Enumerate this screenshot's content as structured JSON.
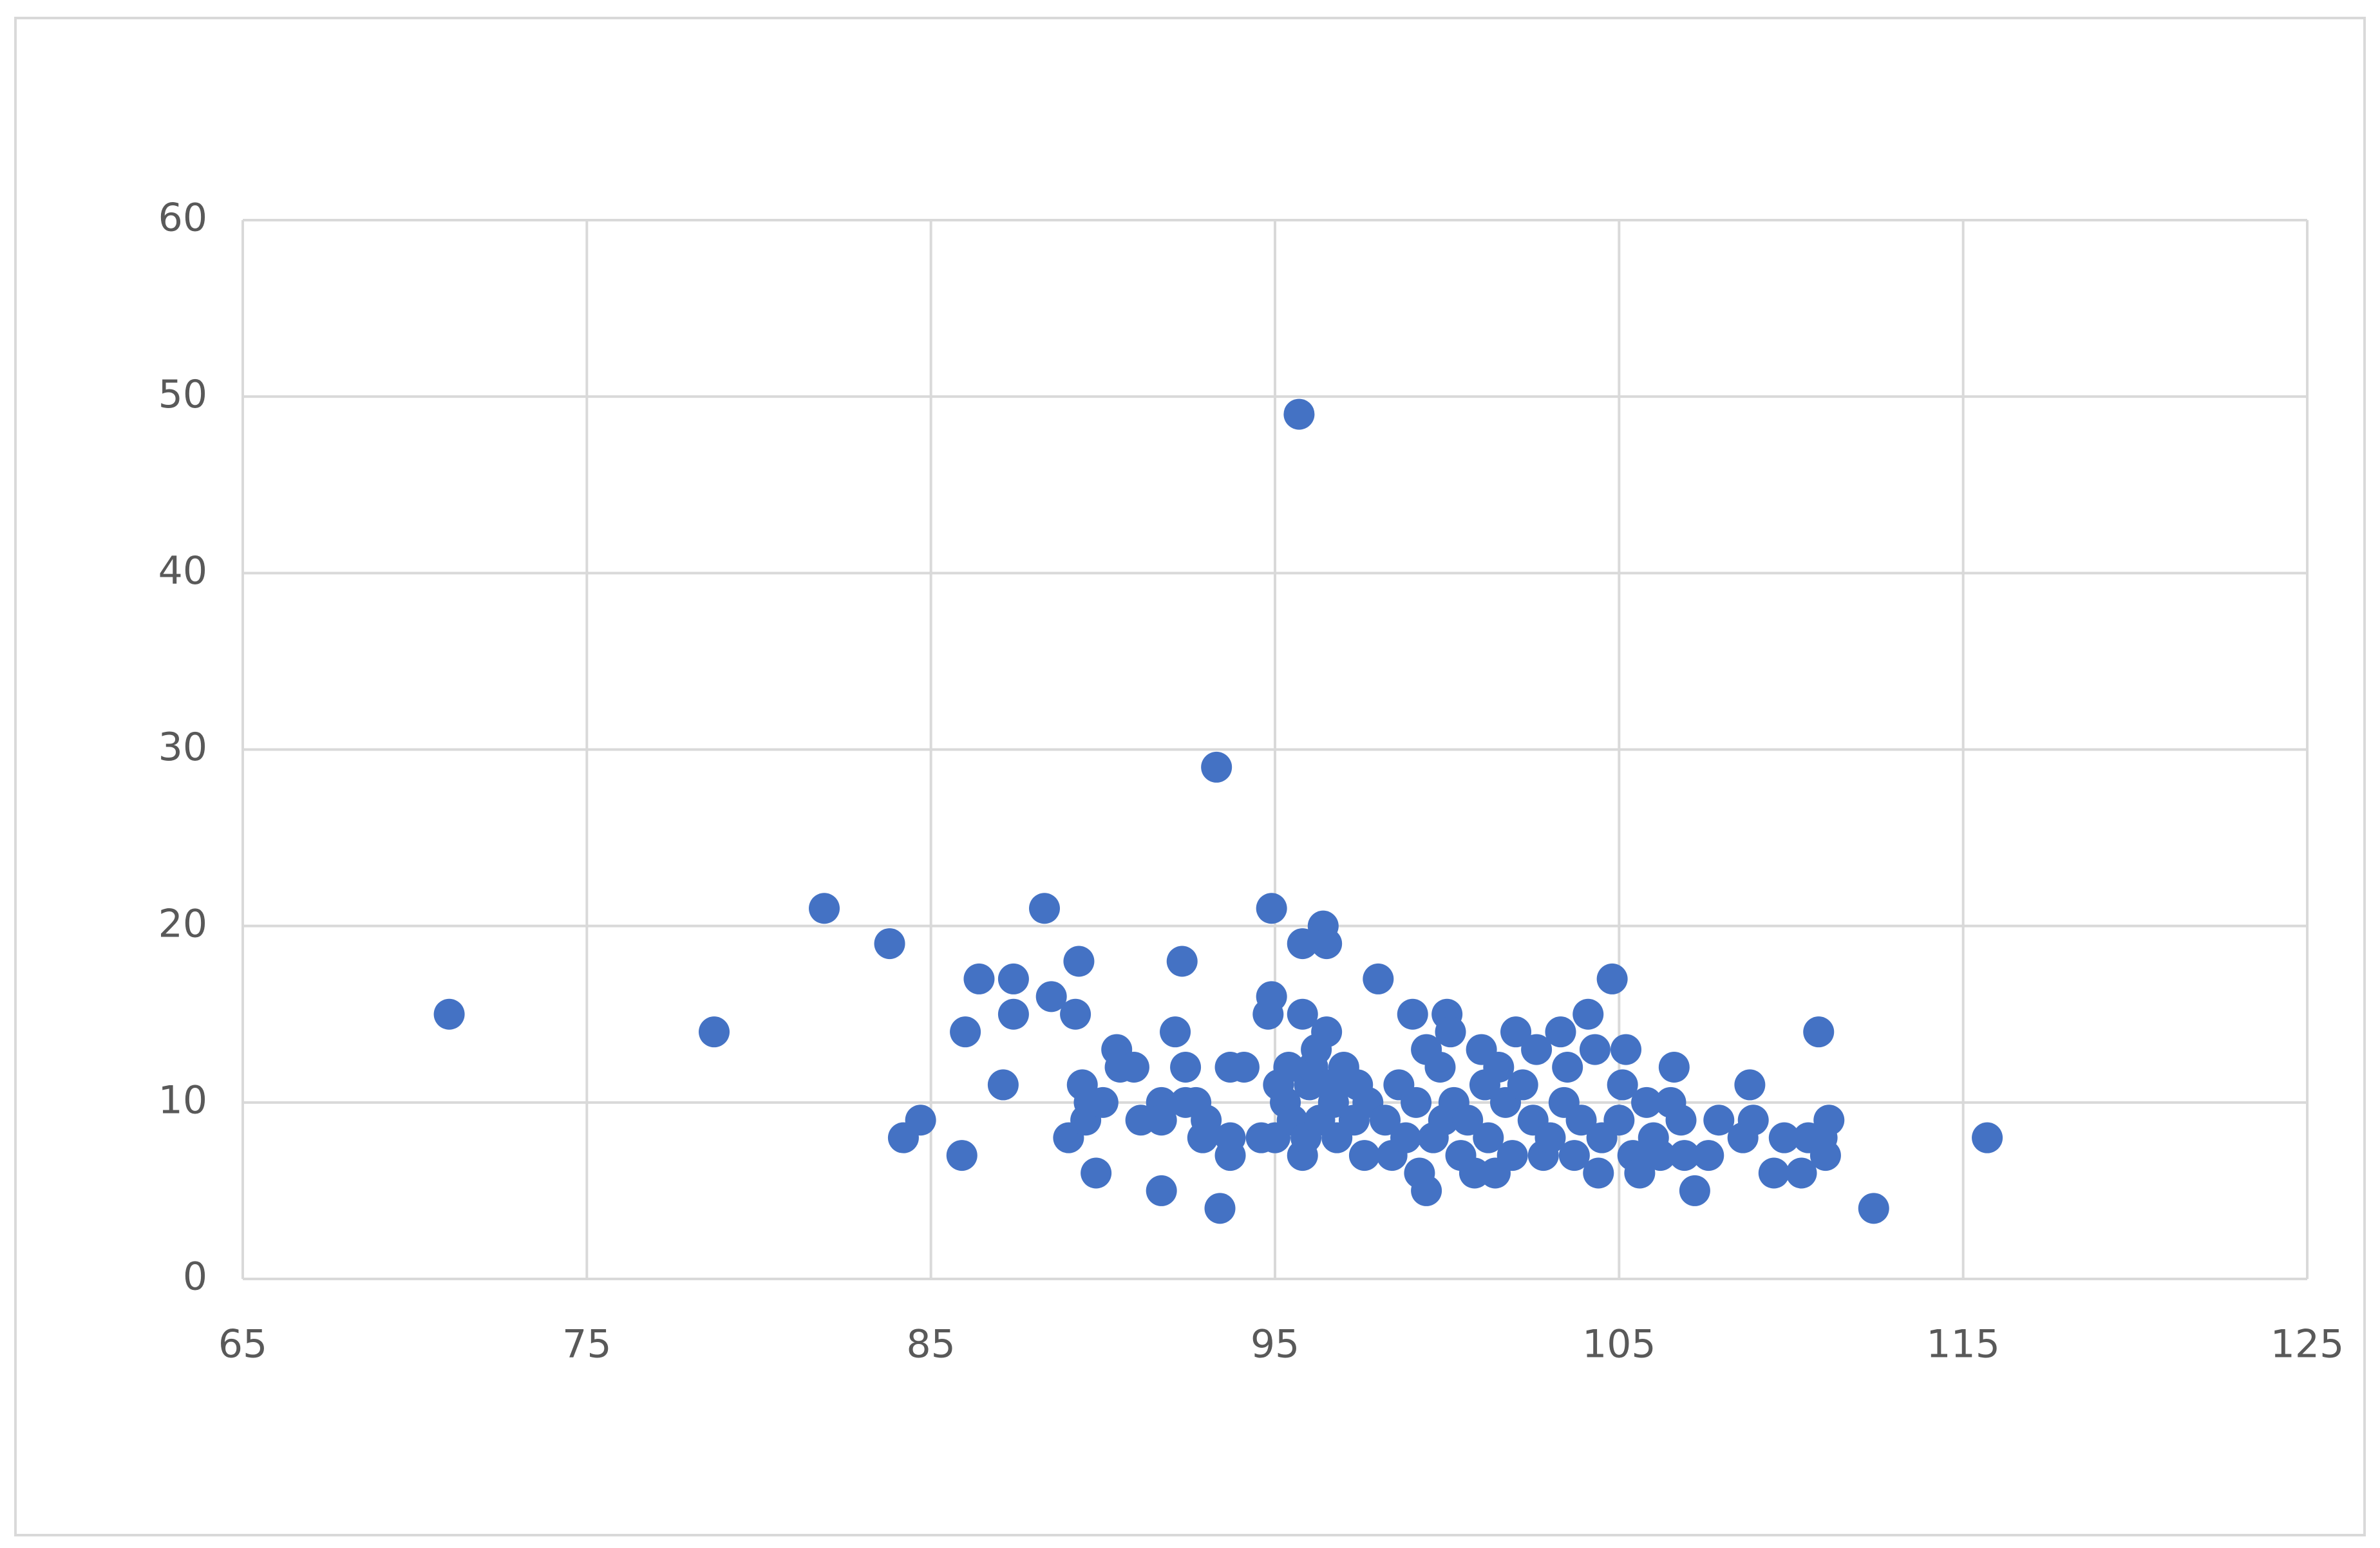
{
  "chart_data": {
    "type": "scatter",
    "color": "#4472c4",
    "grid": true,
    "xlim": [
      65,
      125
    ],
    "xticks": [
      65,
      75,
      85,
      95,
      105,
      115,
      125
    ],
    "ylim": [
      0,
      60
    ],
    "yticks": [
      0,
      10,
      20,
      30,
      40,
      50,
      60
    ],
    "x": [
      71.0,
      78.7,
      81.9,
      83.8,
      84.2,
      84.7,
      85.9,
      86.0,
      86.4,
      87.1,
      87.4,
      87.4,
      88.3,
      88.5,
      89.0,
      89.2,
      89.3,
      89.4,
      89.5,
      89.6,
      89.8,
      90.0,
      90.4,
      90.5,
      90.9,
      91.1,
      91.7,
      91.7,
      91.7,
      92.1,
      92.3,
      92.4,
      92.4,
      92.7,
      92.9,
      93.0,
      93.3,
      93.4,
      93.7,
      93.7,
      93.7,
      94.1,
      94.6,
      94.8,
      94.9,
      94.9,
      95.0,
      95.1,
      95.3,
      95.4,
      95.5,
      95.7,
      95.8,
      95.8,
      95.8,
      95.9,
      96.0,
      96.1,
      96.2,
      96.3,
      96.4,
      96.5,
      96.5,
      96.6,
      96.7,
      96.8,
      97.0,
      97.3,
      97.4,
      97.6,
      97.7,
      98.0,
      98.2,
      98.4,
      98.6,
      98.8,
      99.0,
      99.1,
      99.2,
      99.4,
      99.4,
      99.6,
      99.8,
      99.9,
      100.0,
      100.1,
      100.2,
      100.4,
      100.6,
      100.8,
      101.0,
      101.1,
      101.2,
      101.4,
      101.5,
      101.7,
      101.9,
      102.0,
      102.2,
      102.5,
      102.6,
      102.8,
      103.0,
      103.3,
      103.4,
      103.5,
      103.7,
      103.9,
      104.1,
      104.3,
      104.4,
      104.5,
      104.8,
      105.0,
      105.1,
      105.2,
      105.4,
      105.6,
      105.8,
      106.0,
      106.2,
      106.5,
      106.6,
      106.8,
      106.9,
      107.2,
      107.6,
      107.9,
      108.6,
      108.8,
      108.9,
      109.5,
      109.8,
      110.3,
      110.5,
      110.8,
      110.9,
      111.0,
      111.1,
      112.4,
      115.7
    ],
    "values": [
      15,
      14,
      21,
      19,
      8,
      9,
      7,
      14,
      17,
      11,
      17,
      15,
      21,
      16,
      8,
      15,
      18,
      11,
      9,
      10,
      6,
      10,
      13,
      12,
      12,
      9,
      5,
      10,
      9,
      14,
      18,
      12,
      10,
      10,
      8,
      9,
      29,
      4,
      7,
      8,
      12,
      12,
      8,
      15,
      21,
      16,
      8,
      11,
      10,
      12,
      9,
      49,
      15,
      7,
      19,
      8,
      11,
      12,
      13,
      9,
      20,
      19,
      14,
      11,
      10,
      8,
      12,
      9,
      11,
      7,
      10,
      17,
      9,
      7,
      11,
      8,
      15,
      10,
      6,
      13,
      5,
      8,
      12,
      9,
      15,
      14,
      10,
      7,
      9,
      6,
      13,
      11,
      8,
      6,
      12,
      10,
      7,
      14,
      11,
      9,
      13,
      7,
      8,
      14,
      10,
      12,
      7,
      9,
      15,
      13,
      6,
      8,
      17,
      9,
      11,
      13,
      7,
      6,
      10,
      8,
      7,
      10,
      12,
      9,
      7,
      5,
      7,
      9,
      8,
      11,
      9,
      6,
      8,
      6,
      8,
      14,
      8,
      7,
      9,
      4,
      8
    ]
  }
}
